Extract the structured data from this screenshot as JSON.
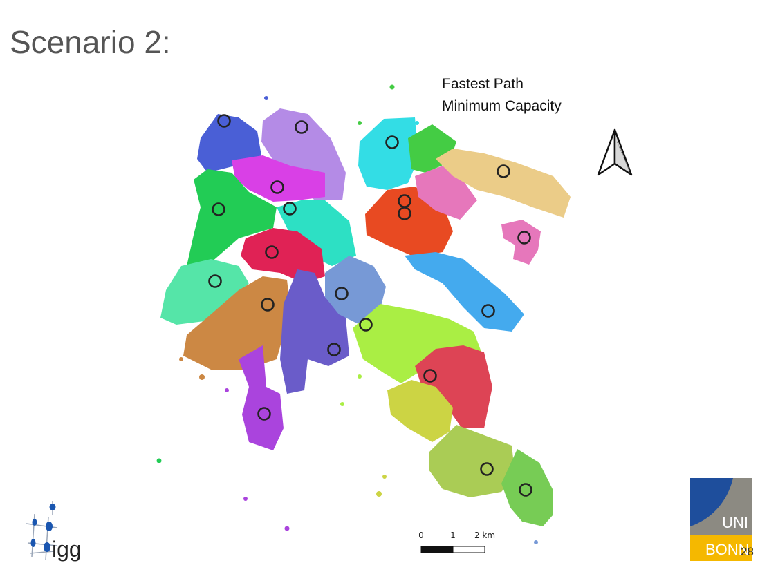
{
  "slide": {
    "title": "Scenario 2:",
    "page_number": "28"
  },
  "legend": {
    "line1": "Fastest Path",
    "line2": "Minimum Capacity"
  },
  "scale": {
    "ticks": [
      "0",
      "1",
      "2 km"
    ]
  },
  "logos": {
    "left_text": "igg",
    "right_top": "UNI",
    "right_bottom": "BONN"
  },
  "north_arrow": "north-arrow-icon",
  "colors": {
    "title": "#555555",
    "uni_blue": "#1e4e9c",
    "uni_gray": "#8c8a82",
    "uni_yellow": "#f5b800",
    "regions": [
      "#4a5fd6",
      "#b48be6",
      "#d940e6",
      "#22cc55",
      "#2de0c4",
      "#e02255",
      "#55e5a8",
      "#cc8844",
      "#6a5cc9",
      "#7799d6",
      "#aa44dd",
      "#33dde5",
      "#44cc44",
      "#e84a22",
      "#e677bb",
      "#ebcc88",
      "#44aaee",
      "#dd4455",
      "#aaee44",
      "#ccd444",
      "#aacc55",
      "#77cc55"
    ]
  }
}
